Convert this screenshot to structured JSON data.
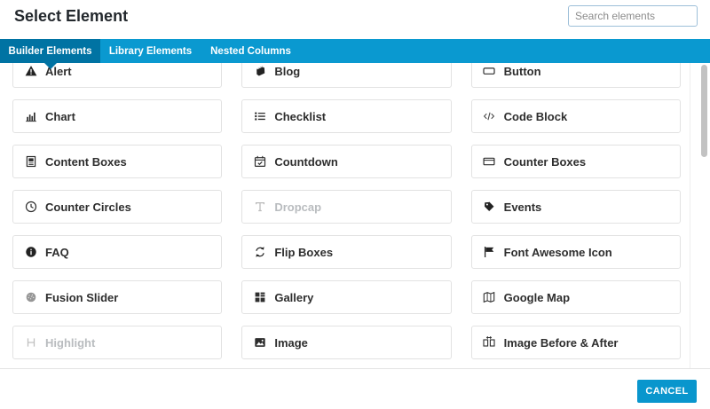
{
  "header": {
    "title": "Select Element",
    "search_placeholder": "Search elements"
  },
  "tabs": [
    {
      "label": "Builder Elements",
      "active": true
    },
    {
      "label": "Library Elements",
      "active": false
    },
    {
      "label": "Nested Columns",
      "active": false
    }
  ],
  "elements": [
    {
      "label": "Alert",
      "icon": "alert-icon",
      "enabled": true
    },
    {
      "label": "Blog",
      "icon": "blog-icon",
      "enabled": true
    },
    {
      "label": "Button",
      "icon": "button-icon",
      "enabled": true
    },
    {
      "label": "Chart",
      "icon": "chart-icon",
      "enabled": true
    },
    {
      "label": "Checklist",
      "icon": "checklist-icon",
      "enabled": true
    },
    {
      "label": "Code Block",
      "icon": "code-block-icon",
      "enabled": true
    },
    {
      "label": "Content Boxes",
      "icon": "content-boxes-icon",
      "enabled": true
    },
    {
      "label": "Countdown",
      "icon": "countdown-icon",
      "enabled": true
    },
    {
      "label": "Counter Boxes",
      "icon": "counter-boxes-icon",
      "enabled": true
    },
    {
      "label": "Counter Circles",
      "icon": "counter-circles-icon",
      "enabled": true
    },
    {
      "label": "Dropcap",
      "icon": "dropcap-icon",
      "enabled": false
    },
    {
      "label": "Events",
      "icon": "events-tag-icon",
      "enabled": true
    },
    {
      "label": "FAQ",
      "icon": "faq-info-icon",
      "enabled": true
    },
    {
      "label": "Flip Boxes",
      "icon": "flip-boxes-icon",
      "enabled": true
    },
    {
      "label": "Font Awesome Icon",
      "icon": "flag-icon",
      "enabled": true
    },
    {
      "label": "Fusion Slider",
      "icon": "fusion-slider-icon",
      "enabled": true
    },
    {
      "label": "Gallery",
      "icon": "gallery-icon",
      "enabled": true
    },
    {
      "label": "Google Map",
      "icon": "google-map-icon",
      "enabled": true
    },
    {
      "label": "Highlight",
      "icon": "highlight-icon",
      "enabled": false
    },
    {
      "label": "Image",
      "icon": "image-icon",
      "enabled": true
    },
    {
      "label": "Image Before & After",
      "icon": "image-before-after-icon",
      "enabled": true
    }
  ],
  "footer": {
    "cancel_label": "CANCEL"
  },
  "colors": {
    "tab_bar": "#0a99d0",
    "tab_active": "#0073a3",
    "cancel": "#0996cd",
    "search_border": "#9dbfd9"
  }
}
